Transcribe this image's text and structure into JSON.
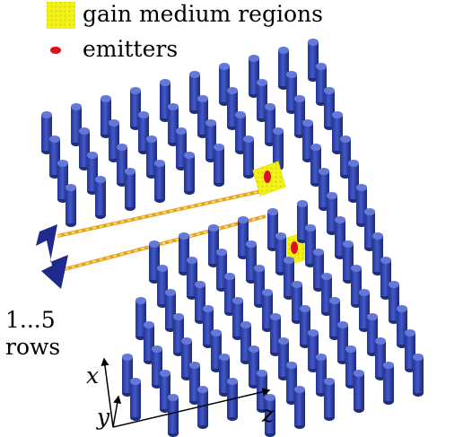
{
  "legend": {
    "gain_label": "gain medium regions",
    "emitter_label": "emitters"
  },
  "rows_label": {
    "number": "1...5",
    "word": "rows"
  },
  "axes": {
    "x": "x",
    "y": "y",
    "z": "z"
  },
  "colors": {
    "rod_body": "#3a4fb8",
    "rod_dark": "#1f2d7a",
    "rod_top": "#6478d8",
    "gain_fill": "#f2f21a",
    "gain_dot": "#c8c800",
    "emitter": "#e0101a",
    "waveguide_line": "#e6a020",
    "arrow": "#1f2a8c"
  }
}
